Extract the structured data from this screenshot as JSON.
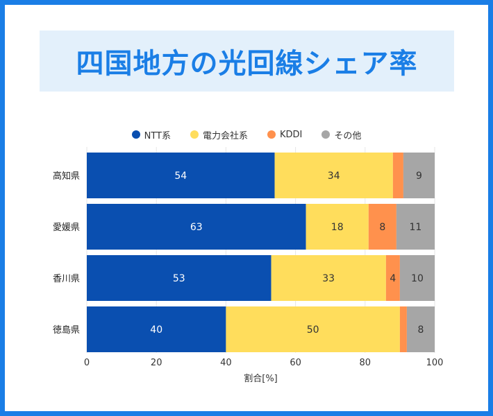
{
  "title": "四国地方の光回線シェア率",
  "chart_data": {
    "type": "bar",
    "orientation": "horizontal",
    "stacked": true,
    "categories": [
      "高知県",
      "愛媛県",
      "香川県",
      "徳島県"
    ],
    "series": [
      {
        "name": "NTT系",
        "color": "#0a4fb0",
        "values": [
          54,
          63,
          53,
          40
        ],
        "labels": [
          "54",
          "63",
          "53",
          "40"
        ]
      },
      {
        "name": "電力会社系",
        "color": "#ffdd5c",
        "values": [
          34,
          18,
          33,
          50
        ],
        "labels": [
          "34",
          "18",
          "33",
          "50"
        ]
      },
      {
        "name": "KDDI",
        "color": "#ff914d",
        "values": [
          3,
          8,
          4,
          2
        ],
        "labels": [
          "",
          "8",
          "4",
          ""
        ]
      },
      {
        "name": "その他",
        "color": "#a6a6a6",
        "values": [
          9,
          11,
          10,
          8
        ],
        "labels": [
          "9",
          "11",
          "10",
          "8"
        ]
      }
    ],
    "xlabel": "割合[%]",
    "ylabel": "",
    "xlim": [
      0,
      100
    ],
    "xticks": [
      "0",
      "20",
      "40",
      "60",
      "80",
      "100"
    ],
    "grid": true,
    "legend_position": "top"
  }
}
